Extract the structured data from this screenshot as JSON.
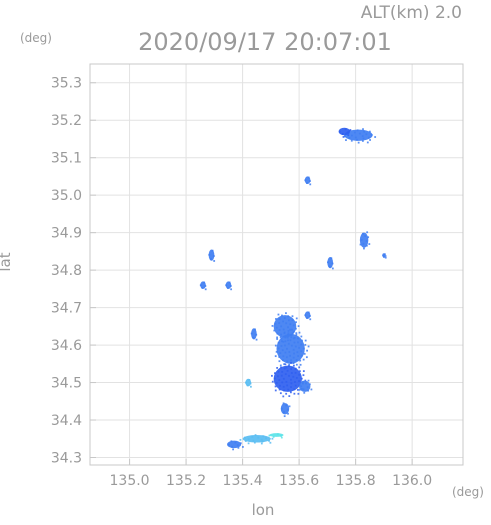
{
  "chart_data": {
    "type": "scatter",
    "title": "2020/09/17 20:07:01",
    "subtitle": "ALT(km) 2.0",
    "xlabel": "lon",
    "ylabel": "lat",
    "x_unit": "(deg)",
    "y_unit": "(deg)",
    "xlim": [
      134.86,
      136.18
    ],
    "ylim": [
      34.28,
      35.35
    ],
    "x_ticks": [
      135.0,
      135.2,
      135.4,
      135.6,
      135.8,
      136.0
    ],
    "y_ticks": [
      34.3,
      34.4,
      34.5,
      34.6,
      34.7,
      34.8,
      34.9,
      35.0,
      35.1,
      35.2,
      35.3
    ],
    "x_tick_labels": [
      "135.0",
      "135.2",
      "135.4",
      "135.6",
      "135.8",
      "136.0"
    ],
    "y_tick_labels": [
      "34.3",
      "34.4",
      "34.5",
      "34.6",
      "34.7",
      "34.8",
      "34.9",
      "35.0",
      "35.1",
      "35.2",
      "35.3"
    ],
    "grid": true,
    "colors": {
      "frame": "#c8c8c8",
      "grid": "#e2e2e2",
      "text": "#9a9a9a",
      "echo_weak": "#3f7ef2",
      "echo_mid": "#2f5ff0",
      "echo_light": "#59bdf2",
      "echo_cyan": "#5ae3e8"
    },
    "clusters": [
      {
        "lon": 135.81,
        "lat": 35.16,
        "size_lon": 0.1,
        "size_lat": 0.03,
        "intensity": "weak"
      },
      {
        "lon": 135.76,
        "lat": 35.17,
        "size_lon": 0.04,
        "size_lat": 0.02,
        "intensity": "mid"
      },
      {
        "lon": 135.63,
        "lat": 35.04,
        "size_lon": 0.02,
        "size_lat": 0.02,
        "intensity": "weak"
      },
      {
        "lon": 135.83,
        "lat": 34.88,
        "size_lon": 0.03,
        "size_lat": 0.04,
        "intensity": "weak"
      },
      {
        "lon": 135.9,
        "lat": 34.84,
        "size_lon": 0.01,
        "size_lat": 0.01,
        "intensity": "weak"
      },
      {
        "lon": 135.29,
        "lat": 34.84,
        "size_lon": 0.02,
        "size_lat": 0.03,
        "intensity": "weak"
      },
      {
        "lon": 135.26,
        "lat": 34.76,
        "size_lon": 0.02,
        "size_lat": 0.02,
        "intensity": "weak"
      },
      {
        "lon": 135.55,
        "lat": 34.65,
        "size_lon": 0.08,
        "size_lat": 0.06,
        "intensity": "weak"
      },
      {
        "lon": 135.57,
        "lat": 34.59,
        "size_lon": 0.1,
        "size_lat": 0.08,
        "intensity": "weak"
      },
      {
        "lon": 135.56,
        "lat": 34.51,
        "size_lon": 0.1,
        "size_lat": 0.07,
        "intensity": "mid"
      },
      {
        "lon": 135.62,
        "lat": 34.49,
        "size_lon": 0.04,
        "size_lat": 0.03,
        "intensity": "weak"
      },
      {
        "lon": 135.44,
        "lat": 34.63,
        "size_lon": 0.02,
        "size_lat": 0.03,
        "intensity": "weak"
      },
      {
        "lon": 135.63,
        "lat": 34.68,
        "size_lon": 0.02,
        "size_lat": 0.02,
        "intensity": "weak"
      },
      {
        "lon": 135.55,
        "lat": 34.43,
        "size_lon": 0.03,
        "size_lat": 0.03,
        "intensity": "weak"
      },
      {
        "lon": 135.42,
        "lat": 34.5,
        "size_lon": 0.02,
        "size_lat": 0.02,
        "intensity": "light"
      },
      {
        "lon": 135.37,
        "lat": 34.335,
        "size_lon": 0.05,
        "size_lat": 0.02,
        "intensity": "weak"
      },
      {
        "lon": 135.45,
        "lat": 34.35,
        "size_lon": 0.1,
        "size_lat": 0.02,
        "intensity": "light"
      },
      {
        "lon": 135.52,
        "lat": 34.36,
        "size_lon": 0.05,
        "size_lat": 0.01,
        "intensity": "cyan"
      },
      {
        "lon": 135.71,
        "lat": 34.82,
        "size_lon": 0.02,
        "size_lat": 0.03,
        "intensity": "weak"
      },
      {
        "lon": 135.35,
        "lat": 34.76,
        "size_lon": 0.02,
        "size_lat": 0.02,
        "intensity": "weak"
      }
    ]
  }
}
